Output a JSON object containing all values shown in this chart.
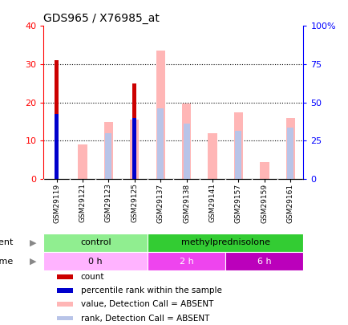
{
  "title": "GDS965 / X76985_at",
  "samples": [
    "GSM29119",
    "GSM29121",
    "GSM29123",
    "GSM29125",
    "GSM29137",
    "GSM29138",
    "GSM29141",
    "GSM29157",
    "GSM29159",
    "GSM29161"
  ],
  "count_values": [
    31,
    0,
    0,
    25,
    0,
    0,
    0,
    0,
    0,
    0
  ],
  "percentile_values": [
    17,
    0,
    0,
    16,
    0,
    0,
    0,
    0,
    0,
    0
  ],
  "value_absent": [
    0,
    9,
    15,
    15.5,
    33.5,
    19.7,
    12,
    17.5,
    4.5,
    16
  ],
  "rank_absent": [
    0,
    0,
    12,
    0,
    18.5,
    14.5,
    0,
    12.5,
    0,
    13.5
  ],
  "left_ylim": [
    0,
    40
  ],
  "right_ylim": [
    0,
    100
  ],
  "left_yticks": [
    0,
    10,
    20,
    30,
    40
  ],
  "right_yticks": [
    0,
    25,
    50,
    75,
    100
  ],
  "right_yticklabels": [
    "0",
    "25",
    "50",
    "75",
    "100%"
  ],
  "agent_labels": [
    {
      "label": "control",
      "span": [
        0,
        4
      ],
      "color": "#90EE90"
    },
    {
      "label": "methylprednisolone",
      "span": [
        4,
        10
      ],
      "color": "#33CC33"
    }
  ],
  "time_labels": [
    {
      "label": "0 h",
      "span": [
        0,
        4
      ],
      "color": "#FFB3FF"
    },
    {
      "label": "2 h",
      "span": [
        4,
        7
      ],
      "color": "#EE44EE"
    },
    {
      "label": "6 h",
      "span": [
        7,
        10
      ],
      "color": "#BB00BB"
    }
  ],
  "color_count": "#CC0000",
  "color_percentile": "#0000CC",
  "color_value_absent": "#FFB6B6",
  "color_rank_absent": "#B8C4E8",
  "legend_items": [
    {
      "color": "#CC0000",
      "label": "count"
    },
    {
      "color": "#0000CC",
      "label": "percentile rank within the sample"
    },
    {
      "color": "#FFB6B6",
      "label": "value, Detection Call = ABSENT"
    },
    {
      "color": "#B8C4E8",
      "label": "rank, Detection Call = ABSENT"
    }
  ]
}
